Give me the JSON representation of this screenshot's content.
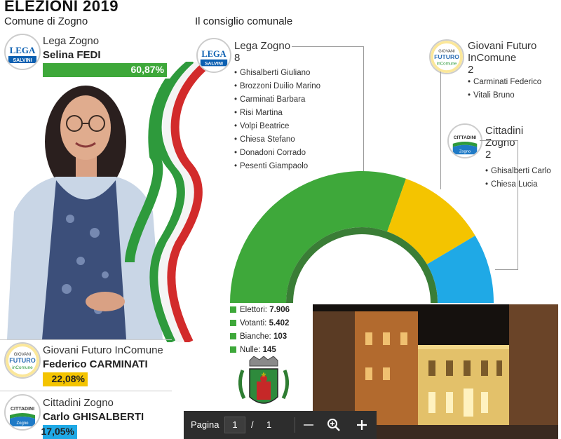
{
  "header": {
    "title": "ELEZIONI 2019",
    "left_subtitle": "Comune di Zogno",
    "council_title": "Il consiglio comunale"
  },
  "candidates": [
    {
      "party": "Lega Zogno",
      "name": "Selina FEDI",
      "pct": "60,87%",
      "share": 0.6087,
      "color": "#3ea83a",
      "text_color": "#ffffff",
      "logo": "lega-salvini-logo"
    },
    {
      "party": "Giovani Futuro InComune",
      "name": "Federico CARMINATI",
      "pct": "22,08%",
      "share": 0.2208,
      "color": "#f4c400",
      "text_color": "#222222",
      "logo": "giovani-futuro-incomune-logo"
    },
    {
      "party": "Cittadini Zogno",
      "name": "Carlo GHISALBERTI",
      "pct": "17,05%",
      "share": 0.1705,
      "color": "#1fa9e6",
      "text_color": "#222222",
      "logo": "cittadini-zogno-logo"
    }
  ],
  "council": [
    {
      "party": "Lega Zogno",
      "count": "8",
      "members": [
        "Ghisalberti Giuliano",
        "Brozzoni Duilio Marino",
        "Carminati Barbara",
        "Risi Martina",
        "Volpi Beatrice",
        "Chiesa Stefano",
        "Donadoni Corrado",
        "Pesenti Giampaolo"
      ]
    },
    {
      "party_line1": "Giovani Futuro",
      "party_line2": "InComune",
      "count": "2",
      "members": [
        "Carminati Federico",
        "Vitali Bruno"
      ]
    },
    {
      "party_line1": "Cittadini",
      "party_line2": "Zogno",
      "count": "2",
      "members": [
        "Ghisalberti Carlo",
        "Chiesa Lucia"
      ]
    }
  ],
  "stats": [
    {
      "label": "Elettori:",
      "value": "7.906"
    },
    {
      "label": "Votanti:",
      "value": "5.402"
    },
    {
      "label": "Bianche:",
      "value": "103"
    },
    {
      "label": "Nulle:",
      "value": "145"
    }
  ],
  "logos_text": {
    "lega_top": "LEGA",
    "lega_bottom": "SALVINI",
    "giovani_top": "GIOVANI",
    "giovani_mid": "FUTURO",
    "giovani_bottom": "inComune",
    "cittadini_top": "CITTADINI",
    "cittadini_bottom": "Zogno"
  },
  "toolbar": {
    "label": "Pagina",
    "current_page": "1",
    "separator": "/",
    "total_pages": "1"
  },
  "icons": {
    "zoom_out": "minus-icon",
    "zoom": "magnifier-plus-icon",
    "zoom_in": "plus-icon"
  }
}
